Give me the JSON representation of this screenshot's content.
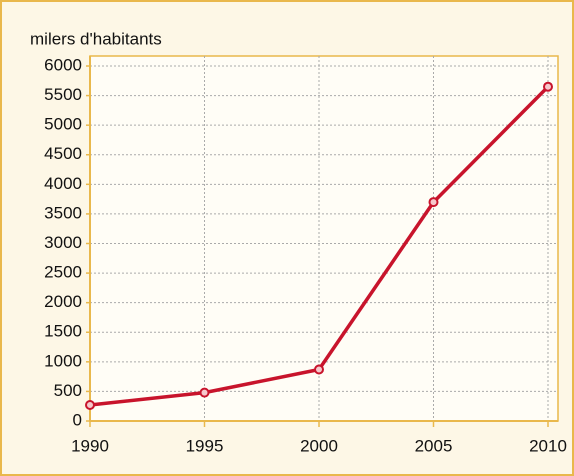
{
  "chart_data": {
    "type": "line",
    "y_label": "milers d'habitants",
    "x": [
      1990,
      1995,
      2000,
      2005,
      2010
    ],
    "series": [
      {
        "name": null,
        "color": "#c8142c",
        "values": [
          270,
          480,
          870,
          3700,
          5650
        ]
      }
    ],
    "xlim": [
      1990,
      2010
    ],
    "xticks": [
      1990,
      1995,
      2000,
      2005,
      2010
    ],
    "ylim": [
      0,
      6000
    ],
    "yticks": [
      0,
      500,
      1000,
      1500,
      2000,
      2500,
      3000,
      3500,
      4000,
      4500,
      5000,
      5500,
      6000
    ],
    "grid": true
  }
}
